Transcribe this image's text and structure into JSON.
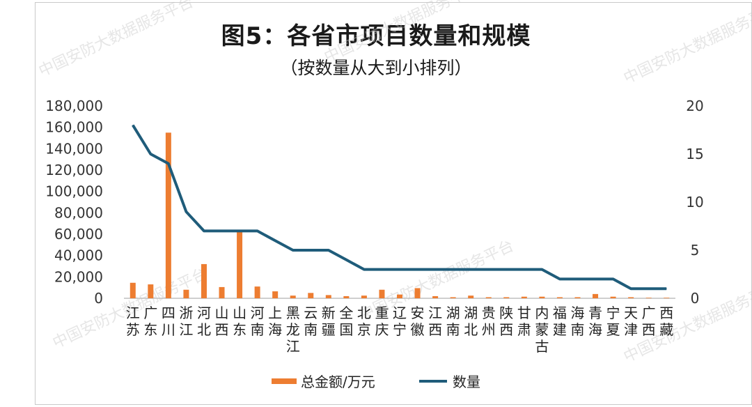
{
  "chart_data": {
    "type": "bar",
    "title": "图5：各省市项目数量和规模",
    "subtitle": "（按数量从大到小排列）",
    "categories": [
      "江苏",
      "广东",
      "四川",
      "浙江",
      "河北",
      "山西",
      "山东",
      "河南",
      "上海",
      "黑龙江",
      "云南",
      "新疆",
      "全国",
      "北京",
      "重庆",
      "辽宁",
      "安徽",
      "江西",
      "湖南",
      "湖北",
      "贵州",
      "陕西",
      "甘肃",
      "内蒙古",
      "福建",
      "海南",
      "青海",
      "宁夏",
      "天津",
      "广西",
      "西藏"
    ],
    "series": [
      {
        "name": "总金额/万元",
        "type": "bar",
        "axis": "left",
        "color": "#ED7D31",
        "values": [
          14500,
          13000,
          155000,
          8000,
          32000,
          10500,
          63000,
          11000,
          6500,
          2500,
          5000,
          3000,
          2000,
          2500,
          8000,
          3500,
          9500,
          2000,
          1000,
          2500,
          1000,
          1000,
          1500,
          1500,
          1000,
          1000,
          4000,
          1500,
          1000,
          500,
          500
        ]
      },
      {
        "name": "数量",
        "type": "line",
        "axis": "right",
        "color": "#1F5C7A",
        "values": [
          18,
          15,
          14,
          9,
          7,
          7,
          7,
          7,
          6,
          5,
          5,
          5,
          4,
          3,
          3,
          3,
          3,
          3,
          3,
          3,
          3,
          3,
          3,
          3,
          2,
          2,
          2,
          2,
          1,
          1,
          1
        ]
      }
    ],
    "y_left": {
      "min": 0,
      "max": 180000,
      "ticks": [
        "0",
        "20,000",
        "40,000",
        "60,000",
        "80,000",
        "100,000",
        "120,000",
        "140,000",
        "160,000",
        "180,000"
      ]
    },
    "y_right": {
      "min": 0,
      "max": 20,
      "ticks": [
        "0",
        "5",
        "10",
        "15",
        "20"
      ]
    },
    "legend": {
      "position": "bottom",
      "items": [
        "总金额/万元",
        "数量"
      ]
    },
    "grid": false,
    "watermark": "中国安防大数据服务平台"
  }
}
